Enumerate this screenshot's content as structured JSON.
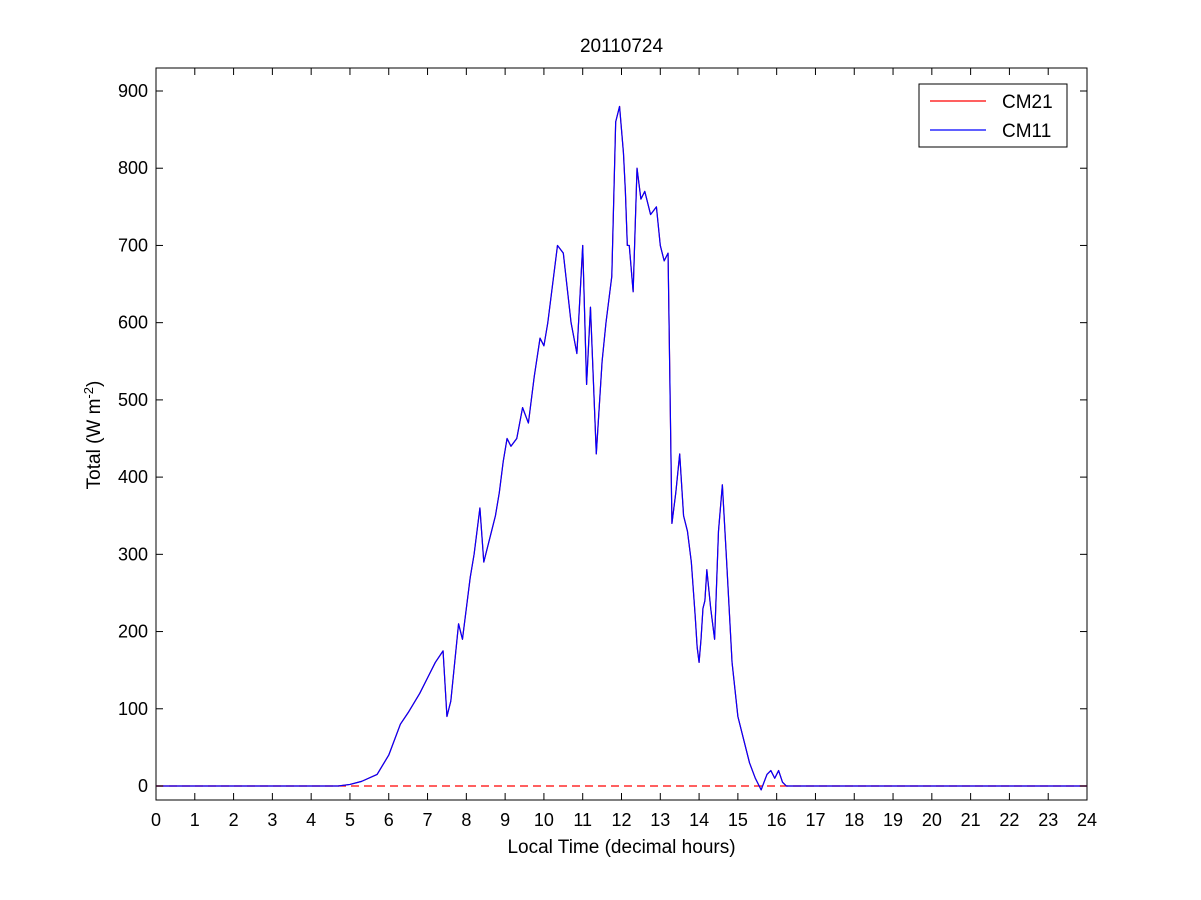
{
  "chart_data": {
    "type": "line",
    "title": "20110724",
    "xlabel": "Local Time (decimal hours)",
    "ylabel": "Total (W m",
    "ylabel_sup": "-2",
    "ylabel_close": ")",
    "xlim": [
      0,
      24
    ],
    "ylim": [
      -20,
      930
    ],
    "xticks": [
      0,
      1,
      2,
      3,
      4,
      5,
      6,
      7,
      8,
      9,
      10,
      11,
      12,
      13,
      14,
      15,
      16,
      17,
      18,
      19,
      20,
      21,
      22,
      23,
      24
    ],
    "yticks": [
      0,
      100,
      200,
      300,
      400,
      500,
      600,
      700,
      800,
      900
    ],
    "grid": false,
    "legend_position": "top-right",
    "reference_line": {
      "y": 0,
      "style": "dashed",
      "color": "#ff0000"
    },
    "series": [
      {
        "name": "CM21",
        "color": "#ff0000",
        "x": [
          0,
          4.7,
          5.0,
          5.3,
          5.7,
          6.0,
          6.3,
          6.5,
          6.8,
          7.0,
          7.2,
          7.4,
          7.5,
          7.6,
          7.7,
          7.8,
          7.9,
          8.0,
          8.1,
          8.2,
          8.35,
          8.45,
          8.55,
          8.65,
          8.75,
          8.85,
          8.95,
          9.05,
          9.15,
          9.3,
          9.45,
          9.6,
          9.75,
          9.9,
          10.0,
          10.1,
          10.2,
          10.35,
          10.5,
          10.7,
          10.85,
          11.0,
          11.1,
          11.2,
          11.35,
          11.5,
          11.6,
          11.75,
          11.85,
          11.95,
          12.05,
          12.1,
          12.15,
          12.2,
          12.3,
          12.4,
          12.5,
          12.6,
          12.75,
          12.9,
          13.0,
          13.1,
          13.2,
          13.3,
          13.4,
          13.5,
          13.6,
          13.7,
          13.8,
          13.9,
          13.95,
          14.0,
          14.05,
          14.1,
          14.15,
          14.2,
          14.3,
          14.4,
          14.5,
          14.6,
          14.7,
          14.85,
          15.0,
          15.15,
          15.3,
          15.45,
          15.6,
          15.75,
          15.85,
          15.95,
          16.05,
          16.15,
          16.25,
          16.35,
          16.45,
          16.55,
          16.65,
          16.75,
          16.9,
          17.05,
          17.2,
          17.4,
          17.6,
          17.8,
          17.95,
          18.05,
          18.2,
          18.35,
          18.5,
          18.65,
          18.8,
          19.0,
          19.5,
          20.0,
          20.5,
          21.0,
          22.0,
          23.0,
          24.0
        ],
        "values": [
          0,
          0,
          2,
          6,
          15,
          40,
          80,
          95,
          120,
          140,
          160,
          175,
          90,
          110,
          160,
          210,
          190,
          230,
          270,
          300,
          360,
          290,
          310,
          330,
          350,
          380,
          420,
          450,
          440,
          450,
          490,
          470,
          530,
          580,
          570,
          600,
          640,
          700,
          690,
          600,
          560,
          700,
          520,
          620,
          430,
          550,
          600,
          660,
          860,
          880,
          820,
          770,
          700,
          700,
          640,
          800,
          760,
          770,
          740,
          750,
          700,
          680,
          690,
          340,
          380,
          430,
          350,
          330,
          290,
          220,
          180,
          160,
          190,
          230,
          240,
          280,
          230,
          190,
          330,
          390,
          300,
          160,
          90,
          60,
          30,
          10,
          -5,
          15,
          20,
          10,
          20,
          5,
          0,
          0,
          0,
          0,
          0,
          0,
          0,
          0,
          0,
          0,
          0,
          0,
          0,
          0,
          0,
          0,
          0,
          0,
          0,
          0,
          0,
          0,
          0,
          0,
          0,
          0,
          0
        ],
        "hidden_under_cm11": true
      },
      {
        "name": "CM11",
        "color": "#0000ff",
        "x": [
          0,
          4.7,
          5.0,
          5.3,
          5.7,
          6.0,
          6.3,
          6.5,
          6.8,
          7.0,
          7.2,
          7.4,
          7.5,
          7.6,
          7.7,
          7.8,
          7.9,
          8.0,
          8.1,
          8.2,
          8.35,
          8.45,
          8.55,
          8.65,
          8.75,
          8.85,
          8.95,
          9.05,
          9.15,
          9.3,
          9.45,
          9.6,
          9.75,
          9.9,
          10.0,
          10.1,
          10.2,
          10.35,
          10.5,
          10.7,
          10.85,
          11.0,
          11.1,
          11.2,
          11.35,
          11.5,
          11.6,
          11.75,
          11.85,
          11.95,
          12.05,
          12.1,
          12.15,
          12.2,
          12.3,
          12.4,
          12.5,
          12.6,
          12.75,
          12.9,
          13.0,
          13.1,
          13.2,
          13.3,
          13.4,
          13.5,
          13.6,
          13.7,
          13.8,
          13.9,
          13.95,
          14.0,
          14.05,
          14.1,
          14.15,
          14.2,
          14.3,
          14.4,
          14.5,
          14.6,
          14.7,
          14.85,
          15.0,
          15.15,
          15.3,
          15.45,
          15.6,
          15.75,
          15.85,
          15.95,
          16.05,
          16.15,
          16.25,
          16.35,
          16.45,
          16.55,
          16.65,
          16.75,
          16.9,
          17.05,
          17.2,
          17.4,
          17.6,
          17.8,
          17.95,
          18.05,
          18.2,
          18.35,
          18.5,
          18.65,
          18.8,
          19.0,
          19.5,
          20.0,
          20.5,
          21.0,
          22.0,
          23.0,
          24.0
        ],
        "values": [
          0,
          0,
          2,
          6,
          15,
          40,
          80,
          95,
          120,
          140,
          160,
          175,
          90,
          110,
          160,
          210,
          190,
          230,
          270,
          300,
          360,
          290,
          310,
          330,
          350,
          380,
          420,
          450,
          440,
          450,
          490,
          470,
          530,
          580,
          570,
          600,
          640,
          700,
          690,
          600,
          560,
          700,
          520,
          620,
          430,
          550,
          600,
          660,
          860,
          880,
          820,
          770,
          700,
          700,
          640,
          800,
          760,
          770,
          740,
          750,
          700,
          680,
          690,
          340,
          380,
          430,
          350,
          330,
          290,
          220,
          180,
          160,
          190,
          230,
          240,
          280,
          230,
          190,
          330,
          390,
          300,
          160,
          90,
          60,
          30,
          10,
          -5,
          15,
          20,
          10,
          20,
          5,
          0,
          0,
          0,
          0,
          0,
          0,
          0,
          0,
          0,
          0,
          0,
          0,
          0,
          0,
          0,
          0,
          0,
          0,
          0,
          0,
          0,
          0,
          0,
          0,
          0,
          0,
          0
        ]
      }
    ]
  }
}
